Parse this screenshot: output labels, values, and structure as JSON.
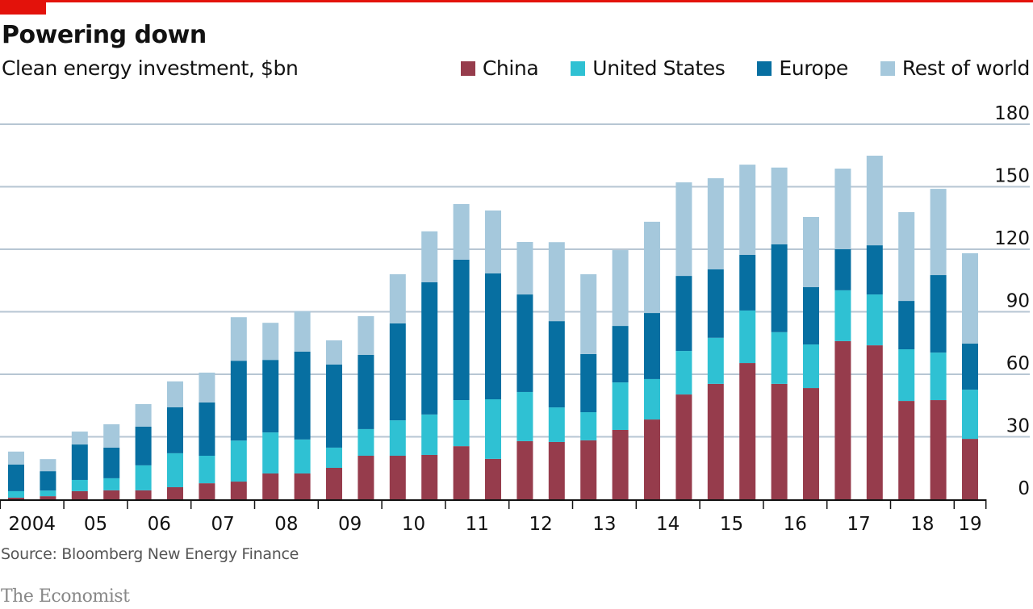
{
  "header": {
    "title": "Powering down",
    "subtitle": "Clean energy investment, $bn"
  },
  "legend": [
    {
      "label": "China",
      "color": "#963c4c"
    },
    {
      "label": "United States",
      "color": "#2fc1d3"
    },
    {
      "label": "Europe",
      "color": "#076fa1"
    },
    {
      "label": "Rest of world",
      "color": "#a5c8dc"
    }
  ],
  "footer": {
    "source": "Source: Bloomberg New Energy Finance",
    "brand": "The Economist"
  },
  "colors": {
    "accent": "#e3120b",
    "grid": "#b7c6d3",
    "axis": "#121212"
  },
  "chart_data": {
    "type": "bar",
    "stacked": true,
    "title": "Powering down",
    "subtitle": "Clean energy investment, $bn",
    "xlabel": "",
    "ylabel": "",
    "ylim": [
      0,
      180
    ],
    "yticks": [
      0,
      30,
      60,
      90,
      120,
      150,
      180
    ],
    "y_axis_side": "right",
    "grid": true,
    "legend_position": "top-right",
    "period": "half-year",
    "year_labels": [
      "2004",
      "05",
      "06",
      "07",
      "08",
      "09",
      "10",
      "11",
      "12",
      "13",
      "14",
      "15",
      "16",
      "17",
      "18",
      "19"
    ],
    "categories": [
      "2004 H1",
      "2004 H2",
      "2005 H1",
      "2005 H2",
      "2006 H1",
      "2006 H2",
      "2007 H1",
      "2007 H2",
      "2008 H1",
      "2008 H2",
      "2009 H1",
      "2009 H2",
      "2010 H1",
      "2010 H2",
      "2011 H1",
      "2011 H2",
      "2012 H1",
      "2012 H2",
      "2013 H1",
      "2013 H2",
      "2014 H1",
      "2014 H2",
      "2015 H1",
      "2015 H2",
      "2016 H1",
      "2016 H2",
      "2017 H1",
      "2017 H2",
      "2018 H1",
      "2018 H2",
      "2019 H1"
    ],
    "series": [
      {
        "name": "China",
        "color": "#963c4c",
        "values": [
          0.8,
          1.5,
          3.9,
          4.3,
          4.3,
          5.8,
          7.7,
          8.5,
          12.4,
          12.4,
          15.1,
          20.9,
          20.9,
          21.3,
          25.5,
          19.4,
          27.9,
          27.5,
          28.3,
          33.3,
          38.3,
          50.3,
          55.4,
          65.4,
          55.4,
          53.4,
          75.9,
          73.9,
          47.2,
          47.6,
          29.0
        ]
      },
      {
        "name": "United States",
        "color": "#2fc1d3",
        "values": [
          3.1,
          2.7,
          5.4,
          5.8,
          12.0,
          16.3,
          13.2,
          19.7,
          19.7,
          16.3,
          9.7,
          12.8,
          17.0,
          19.4,
          22.1,
          28.6,
          23.6,
          16.6,
          13.5,
          22.8,
          19.4,
          20.9,
          22.1,
          25.2,
          24.8,
          20.9,
          24.4,
          24.4,
          24.8,
          22.8,
          23.6
        ]
      },
      {
        "name": "Europe",
        "color": "#076fa1",
        "values": [
          12.8,
          9.3,
          17.0,
          14.7,
          18.6,
          22.1,
          25.6,
          38.3,
          34.8,
          42.2,
          39.9,
          35.6,
          46.5,
          63.5,
          67.4,
          60.4,
          46.8,
          41.4,
          27.9,
          27.1,
          31.7,
          36.0,
          32.9,
          26.7,
          42.2,
          27.5,
          19.7,
          23.6,
          23.2,
          37.2,
          22.1
        ]
      },
      {
        "name": "Rest of world",
        "color": "#a5c8dc",
        "values": [
          6.2,
          5.8,
          6.2,
          11.2,
          10.8,
          12.4,
          14.3,
          20.9,
          17.8,
          19.4,
          11.6,
          18.6,
          23.6,
          24.4,
          26.7,
          30.2,
          25.2,
          37.9,
          38.3,
          36.4,
          43.8,
          44.9,
          43.7,
          43.3,
          36.8,
          33.7,
          38.7,
          43.0,
          42.6,
          41.4,
          43.4
        ]
      }
    ]
  }
}
